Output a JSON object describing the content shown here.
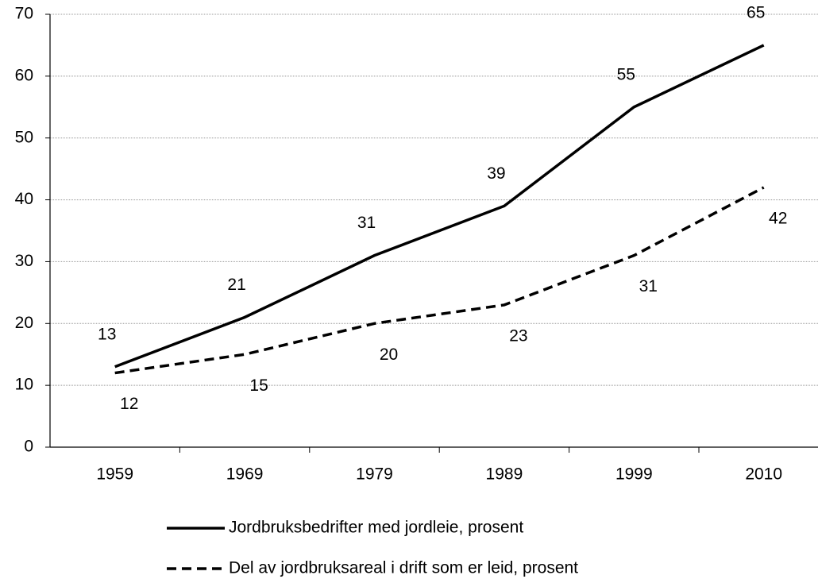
{
  "chart_data": {
    "type": "line",
    "categories": [
      "1959",
      "1969",
      "1979",
      "1989",
      "1999",
      "2010"
    ],
    "series": [
      {
        "name": "Jordbruksbedrifter med jordleie, prosent",
        "color": "#000000",
        "dash": "solid",
        "values": [
          13,
          21,
          31,
          39,
          55,
          65
        ]
      },
      {
        "name": "Del av jordbruksareal i drift som er leid, prosent",
        "color": "#000000",
        "dash": "dashed",
        "values": [
          12,
          15,
          20,
          23,
          31,
          42
        ]
      }
    ],
    "ylim": [
      0,
      70
    ],
    "yticks": [
      0,
      10,
      20,
      30,
      40,
      50,
      60,
      70
    ],
    "grid": true,
    "legend": "bottom"
  }
}
